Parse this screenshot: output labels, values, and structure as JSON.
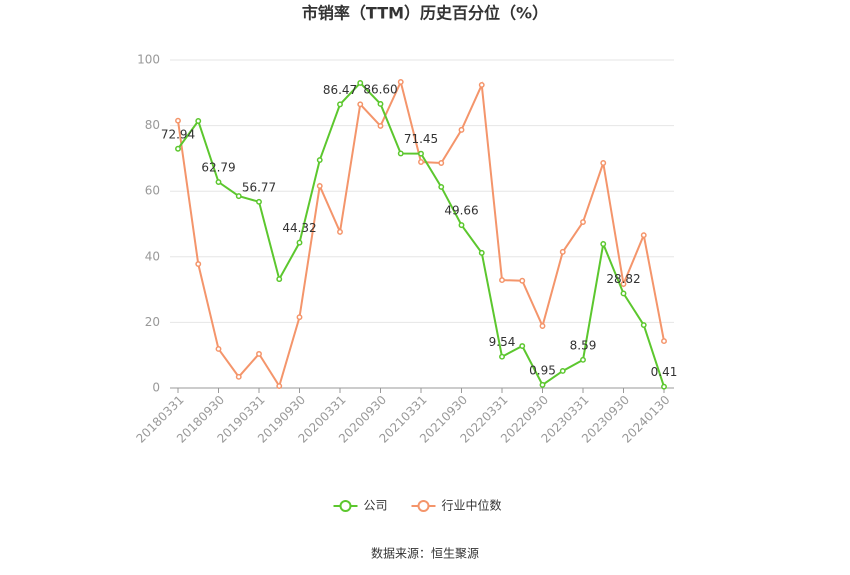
{
  "chart_data": {
    "type": "line",
    "title": "市销率（TTM）历史百分位（%）",
    "source": "数据来源：恒生聚源",
    "categories": [
      "20180331",
      null,
      "20180930",
      null,
      "20190331",
      null,
      "20190930",
      null,
      "20200331",
      null,
      "20200930",
      null,
      "20210331",
      null,
      "20210930",
      null,
      "20220331",
      null,
      "20220930",
      null,
      "20230331",
      null,
      "20230930",
      null,
      "20240130"
    ],
    "series": [
      {
        "name": "公司",
        "color": "#5cc72e",
        "values": [
          72.94,
          81.4,
          62.79,
          58.5,
          56.77,
          33.2,
          44.32,
          69.5,
          86.47,
          93,
          86.6,
          71.5,
          71.45,
          61.3,
          49.66,
          41.2,
          9.54,
          12.8,
          0.95,
          5.2,
          8.59,
          43.9,
          28.82,
          19.2,
          0.41
        ],
        "value_labels": [
          "72.94",
          null,
          "62.79",
          null,
          "56.77",
          null,
          "44.32",
          null,
          "86.47",
          null,
          "86.60",
          null,
          "71.45",
          null,
          "49.66",
          null,
          "9.54",
          null,
          "0.95",
          null,
          "8.59",
          null,
          "28.82",
          null,
          "0.41"
        ]
      },
      {
        "name": "行业中位数",
        "color": "#f4956b",
        "values": [
          81.5,
          37.8,
          11.9,
          3.4,
          10.4,
          0.6,
          21.6,
          61.6,
          47.6,
          86.5,
          79.9,
          93.3,
          68.9,
          68.6,
          78.7,
          92.4,
          32.9,
          32.7,
          18.9,
          41.5,
          50.6,
          68.6,
          31.7,
          46.6,
          14.3
        ]
      }
    ],
    "ylim": [
      0,
      100
    ],
    "yticks": [
      0,
      20,
      40,
      60,
      80,
      100
    ],
    "grid": true
  }
}
